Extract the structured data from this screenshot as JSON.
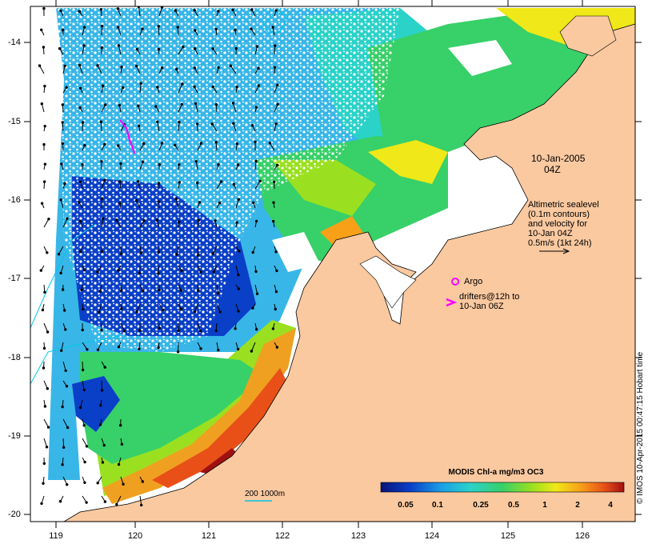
{
  "map": {
    "date_label": "10-Jan-2005",
    "time_label": "04Z",
    "altimetry_note": [
      "Altimetric sealevel",
      "(0.1m contours)",
      "and velocity for",
      "10-Jan 04Z",
      "0.5m/s (1kt 24h)"
    ],
    "argo_label": "Argo",
    "drifters_label": [
      "drifters@12h to",
      "10-Jan 06Z"
    ],
    "scale_label": "200  1000m",
    "credit": "© IMOS 10-Apr-2015 00:47:15 Hobart time",
    "colors": {
      "land": "#fac9a0",
      "argo": "#ff00ff",
      "drifter": "#ff00ff",
      "isobath": "#00c8e6"
    }
  },
  "axes": {
    "y_ticks": [
      "-14",
      "-15",
      "-16",
      "-17",
      "-18",
      "-19",
      "-20"
    ],
    "x_ticks": [
      "119",
      "120",
      "121",
      "122",
      "123",
      "124",
      "125",
      "126"
    ]
  },
  "colorbar": {
    "title": "MODIS Chl-a mg/m3 OC3",
    "ticks": [
      "0.05",
      "0.1",
      "0.25",
      "0.5",
      "1",
      "2",
      "4"
    ],
    "stops": [
      "#08147a",
      "#0a3fc8",
      "#1aa0e6",
      "#2ad2c8",
      "#38d068",
      "#9ae020",
      "#f0e818",
      "#f8a018",
      "#e85018",
      "#a01010"
    ]
  }
}
